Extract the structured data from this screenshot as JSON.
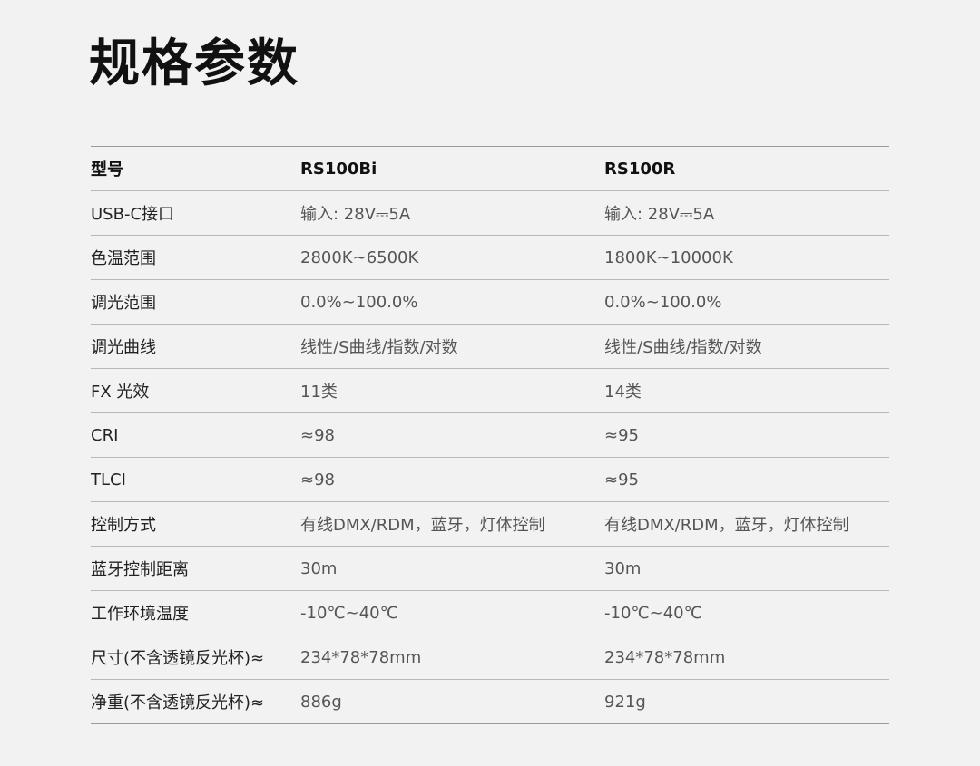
{
  "title": "规格参数",
  "header": {
    "label": "型号",
    "models": [
      "RS100Bi",
      "RS100R"
    ]
  },
  "rows": [
    {
      "label": "USB-C接口",
      "values": [
        "输入: 28V⎓5A",
        "输入: 28V⎓5A"
      ]
    },
    {
      "label": "色温范围",
      "values": [
        "2800K~6500K",
        "1800K~10000K"
      ]
    },
    {
      "label": "调光范围",
      "values": [
        "0.0%~100.0%",
        "0.0%~100.0%"
      ]
    },
    {
      "label": "调光曲线",
      "values": [
        "线性/S曲线/指数/对数",
        "线性/S曲线/指数/对数"
      ]
    },
    {
      "label": "FX 光效",
      "values": [
        "11类",
        "14类"
      ]
    },
    {
      "label": "CRI",
      "values": [
        "≈98",
        "≈95"
      ]
    },
    {
      "label": "TLCI",
      "values": [
        "≈98",
        "≈95"
      ]
    },
    {
      "label": "控制方式",
      "values": [
        "有线DMX/RDM，蓝牙，灯体控制",
        "有线DMX/RDM，蓝牙，灯体控制"
      ]
    },
    {
      "label": "蓝牙控制距离",
      "values": [
        "30m",
        "30m"
      ]
    },
    {
      "label": "工作环境温度",
      "values": [
        "-10℃~40℃",
        "-10℃~40℃"
      ]
    },
    {
      "label": "尺寸(不含透镜反光杯)≈",
      "values": [
        "234*78*78mm",
        "234*78*78mm"
      ]
    },
    {
      "label": "净重(不含透镜反光杯)≈",
      "values": [
        "886g",
        "921g"
      ]
    }
  ]
}
